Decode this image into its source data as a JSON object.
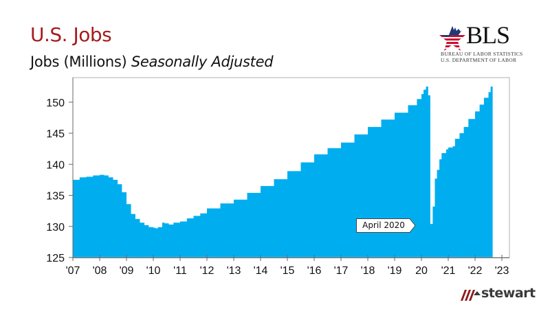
{
  "header": {
    "title": "U.S. Jobs",
    "subtitle_main": "Jobs (Millions)",
    "subtitle_italic": "Seasonally Adjusted"
  },
  "logos": {
    "bls": {
      "wordmark": "BLS",
      "line1": "BUREAU OF LABOR STATISTICS",
      "line2": "U.S. DEPARTMENT OF LABOR"
    },
    "stewart": {
      "wordmark": "stewart"
    }
  },
  "annotation": {
    "label": "April 2020"
  },
  "colors": {
    "title": "#a61c1c",
    "area": "#00aeef",
    "axis": "#999999",
    "bls_red": "#c8102e",
    "bls_blue": "#1f3a7a",
    "stewart_red": "#8b1a1a"
  },
  "chart_data": {
    "type": "area",
    "title": "U.S. Jobs",
    "subtitle": "Jobs (Millions) Seasonally Adjusted",
    "xlabel": "",
    "ylabel": "Jobs (Millions)",
    "ylim": [
      125,
      153
    ],
    "yticks": [
      125,
      130,
      135,
      140,
      145,
      150
    ],
    "xlim": [
      2007.0,
      2023.25
    ],
    "xticks": [
      2007,
      2008,
      2009,
      2010,
      2011,
      2012,
      2013,
      2014,
      2015,
      2016,
      2017,
      2018,
      2019,
      2020,
      2021,
      2022,
      2023
    ],
    "xtick_labels": [
      "'07",
      "'08",
      "'09",
      "'10",
      "'11",
      "'12",
      "'13",
      "'14",
      "'15",
      "'16",
      "'17",
      "'18",
      "'19",
      "20",
      "'21",
      "'22",
      "'23"
    ],
    "grid": false,
    "legend": null,
    "annotations": [
      {
        "text": "April 2020",
        "x": 2020.25,
        "y": 130.4
      }
    ],
    "x": [
      2007.0,
      2007.25,
      2007.5,
      2007.75,
      2008.0,
      2008.17,
      2008.33,
      2008.5,
      2008.67,
      2008.83,
      2009.0,
      2009.17,
      2009.33,
      2009.5,
      2009.67,
      2009.83,
      2010.0,
      2010.08,
      2010.17,
      2010.33,
      2010.42,
      2010.58,
      2010.75,
      2011.0,
      2011.25,
      2011.5,
      2011.75,
      2012.0,
      2012.5,
      2013.0,
      2013.5,
      2014.0,
      2014.5,
      2015.0,
      2015.5,
      2016.0,
      2016.5,
      2017.0,
      2017.5,
      2018.0,
      2018.5,
      2019.0,
      2019.5,
      2019.83,
      2020.0,
      2020.08,
      2020.17,
      2020.25,
      2020.33,
      2020.42,
      2020.5,
      2020.58,
      2020.67,
      2020.75,
      2020.92,
      2021.0,
      2021.17,
      2021.25,
      2021.42,
      2021.58,
      2021.75,
      2022.0,
      2022.17,
      2022.33,
      2022.5,
      2022.58
    ],
    "values": [
      137.5,
      137.9,
      138.0,
      138.2,
      138.3,
      138.2,
      137.9,
      137.5,
      136.8,
      135.5,
      133.6,
      132.0,
      131.2,
      130.6,
      130.2,
      129.9,
      129.8,
      129.7,
      129.9,
      130.6,
      130.5,
      130.3,
      130.6,
      130.8,
      131.3,
      131.7,
      132.1,
      132.9,
      133.7,
      134.3,
      135.4,
      136.5,
      137.6,
      138.9,
      140.3,
      141.6,
      142.6,
      143.5,
      144.8,
      146.0,
      147.2,
      148.3,
      149.5,
      150.5,
      151.3,
      152.0,
      152.5,
      151.1,
      130.4,
      133.2,
      137.7,
      139.1,
      140.8,
      141.8,
      142.4,
      142.7,
      142.9,
      144.1,
      145.0,
      146.0,
      147.3,
      148.5,
      149.6,
      150.7,
      151.6,
      152.5
    ]
  }
}
